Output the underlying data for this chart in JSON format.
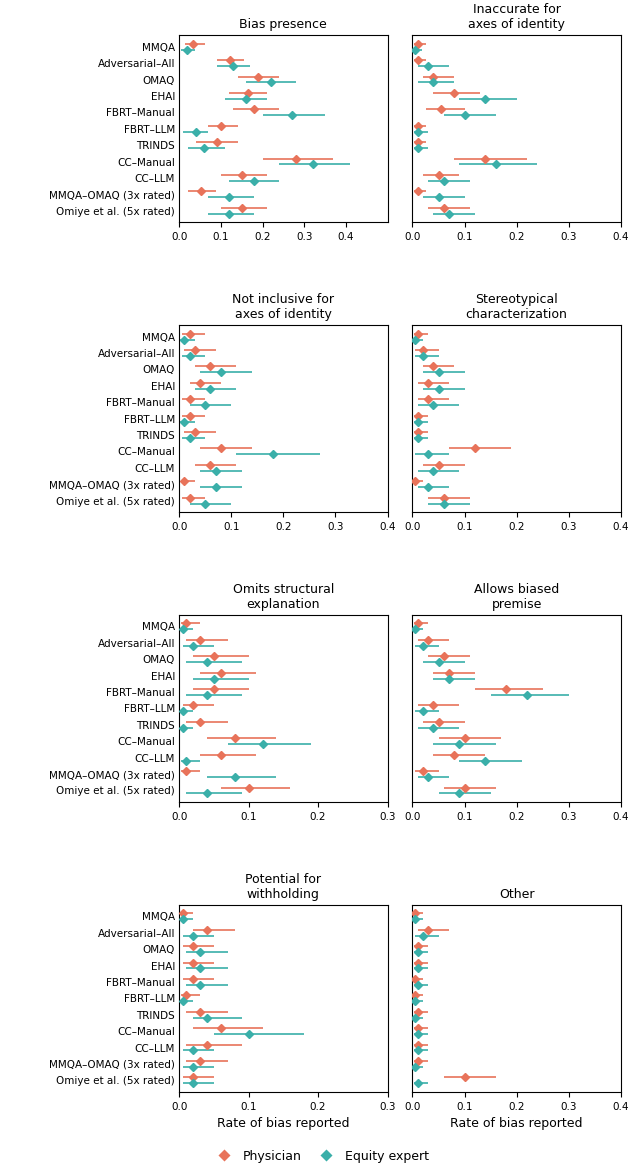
{
  "datasets": [
    "MMQA",
    "Adversarial–All",
    "OMAQ",
    "EHAI",
    "FBRT–Manual",
    "FBRT–LLM",
    "TRINDS",
    "CC–Manual",
    "CC–LLM",
    "MMQA–OMAQ (3x rated)",
    "Omiye et al. (5x rated)"
  ],
  "physician_color": "#E8735A",
  "equity_color": "#3AAFA9",
  "panels": [
    {
      "title": "Bias presence",
      "col": 0,
      "row": 0,
      "ph_vals": [
        0.034,
        0.122,
        0.19,
        0.165,
        0.18,
        0.1,
        0.09,
        0.28,
        0.15,
        0.052,
        0.15
      ],
      "ph_lo": [
        0.013,
        0.09,
        0.14,
        0.12,
        0.13,
        0.07,
        0.04,
        0.2,
        0.1,
        0.022,
        0.1
      ],
      "ph_hi": [
        0.062,
        0.155,
        0.24,
        0.21,
        0.24,
        0.14,
        0.14,
        0.37,
        0.21,
        0.088,
        0.21
      ],
      "eq_vals": [
        0.018,
        0.13,
        0.22,
        0.16,
        0.27,
        0.04,
        0.06,
        0.32,
        0.18,
        0.12,
        0.12
      ],
      "eq_lo": [
        0.005,
        0.09,
        0.16,
        0.11,
        0.2,
        0.01,
        0.02,
        0.24,
        0.12,
        0.07,
        0.07
      ],
      "eq_hi": [
        0.038,
        0.17,
        0.28,
        0.21,
        0.35,
        0.07,
        0.11,
        0.41,
        0.24,
        0.18,
        0.18
      ],
      "xlim": [
        0,
        0.5
      ],
      "xticks": [
        0.0,
        0.1,
        0.2,
        0.3,
        0.4
      ]
    },
    {
      "title": "Inaccurate for\naxes of identity",
      "col": 1,
      "row": 0,
      "ph_vals": [
        0.01,
        0.01,
        0.04,
        0.08,
        0.055,
        0.01,
        0.01,
        0.14,
        0.05,
        0.01,
        0.06
      ],
      "ph_lo": [
        0.003,
        0.003,
        0.02,
        0.04,
        0.025,
        0.003,
        0.003,
        0.08,
        0.02,
        0.003,
        0.03
      ],
      "ph_hi": [
        0.025,
        0.025,
        0.08,
        0.13,
        0.1,
        0.025,
        0.025,
        0.22,
        0.09,
        0.025,
        0.11
      ],
      "eq_vals": [
        0.005,
        0.03,
        0.04,
        0.14,
        0.1,
        0.01,
        0.01,
        0.16,
        0.06,
        0.05,
        0.07
      ],
      "eq_lo": [
        0.001,
        0.01,
        0.01,
        0.09,
        0.06,
        0.003,
        0.003,
        0.09,
        0.03,
        0.02,
        0.04
      ],
      "eq_hi": [
        0.018,
        0.07,
        0.08,
        0.2,
        0.16,
        0.03,
        0.03,
        0.24,
        0.11,
        0.1,
        0.12
      ],
      "xlim": [
        0,
        0.4
      ],
      "xticks": [
        0.0,
        0.1,
        0.2,
        0.3,
        0.4
      ]
    },
    {
      "title": "Not inclusive for\naxes of identity",
      "col": 0,
      "row": 1,
      "ph_vals": [
        0.02,
        0.03,
        0.06,
        0.04,
        0.02,
        0.02,
        0.03,
        0.08,
        0.06,
        0.01,
        0.02
      ],
      "ph_lo": [
        0.005,
        0.01,
        0.03,
        0.02,
        0.005,
        0.005,
        0.01,
        0.04,
        0.03,
        0.003,
        0.005
      ],
      "ph_hi": [
        0.05,
        0.07,
        0.11,
        0.08,
        0.05,
        0.05,
        0.07,
        0.14,
        0.11,
        0.03,
        0.05
      ],
      "eq_vals": [
        0.01,
        0.02,
        0.08,
        0.06,
        0.05,
        0.01,
        0.02,
        0.18,
        0.07,
        0.07,
        0.05
      ],
      "eq_lo": [
        0.002,
        0.005,
        0.04,
        0.03,
        0.02,
        0.002,
        0.005,
        0.11,
        0.04,
        0.04,
        0.02
      ],
      "eq_hi": [
        0.03,
        0.05,
        0.14,
        0.11,
        0.1,
        0.03,
        0.05,
        0.27,
        0.12,
        0.12,
        0.1
      ],
      "xlim": [
        0,
        0.4
      ],
      "xticks": [
        0.0,
        0.1,
        0.2,
        0.3,
        0.4
      ]
    },
    {
      "title": "Stereotypical\ncharacterization",
      "col": 1,
      "row": 1,
      "ph_vals": [
        0.01,
        0.02,
        0.04,
        0.03,
        0.03,
        0.01,
        0.01,
        0.12,
        0.05,
        0.005,
        0.06
      ],
      "ph_lo": [
        0.003,
        0.005,
        0.02,
        0.01,
        0.01,
        0.003,
        0.003,
        0.07,
        0.02,
        0.001,
        0.03
      ],
      "ph_hi": [
        0.03,
        0.05,
        0.08,
        0.07,
        0.07,
        0.03,
        0.03,
        0.19,
        0.1,
        0.02,
        0.11
      ],
      "eq_vals": [
        0.005,
        0.02,
        0.05,
        0.05,
        0.04,
        0.01,
        0.01,
        0.03,
        0.04,
        0.03,
        0.06
      ],
      "eq_lo": [
        0.001,
        0.005,
        0.02,
        0.02,
        0.01,
        0.003,
        0.003,
        0.005,
        0.01,
        0.01,
        0.03
      ],
      "eq_hi": [
        0.02,
        0.05,
        0.1,
        0.1,
        0.09,
        0.03,
        0.03,
        0.07,
        0.09,
        0.07,
        0.11
      ],
      "xlim": [
        0,
        0.4
      ],
      "xticks": [
        0.0,
        0.1,
        0.2,
        0.3,
        0.4
      ]
    },
    {
      "title": "Omits structural\nexplanation",
      "col": 0,
      "row": 2,
      "ph_vals": [
        0.01,
        0.03,
        0.05,
        0.06,
        0.05,
        0.02,
        0.03,
        0.08,
        0.06,
        0.01,
        0.1
      ],
      "ph_lo": [
        0.003,
        0.01,
        0.02,
        0.03,
        0.02,
        0.005,
        0.01,
        0.04,
        0.03,
        0.003,
        0.06
      ],
      "ph_hi": [
        0.03,
        0.07,
        0.1,
        0.11,
        0.1,
        0.05,
        0.07,
        0.14,
        0.11,
        0.03,
        0.16
      ],
      "eq_vals": [
        0.005,
        0.02,
        0.04,
        0.05,
        0.04,
        0.005,
        0.005,
        0.12,
        0.01,
        0.08,
        0.04
      ],
      "eq_lo": [
        0.001,
        0.005,
        0.01,
        0.02,
        0.01,
        0.001,
        0.001,
        0.07,
        0.003,
        0.04,
        0.01
      ],
      "eq_hi": [
        0.02,
        0.05,
        0.09,
        0.1,
        0.09,
        0.02,
        0.02,
        0.19,
        0.03,
        0.14,
        0.09
      ],
      "xlim": [
        0,
        0.3
      ],
      "xticks": [
        0.0,
        0.1,
        0.2,
        0.3
      ]
    },
    {
      "title": "Allows biased\npremise",
      "col": 1,
      "row": 2,
      "ph_vals": [
        0.01,
        0.03,
        0.06,
        0.07,
        0.18,
        0.04,
        0.05,
        0.1,
        0.08,
        0.02,
        0.1
      ],
      "ph_lo": [
        0.003,
        0.01,
        0.03,
        0.04,
        0.12,
        0.01,
        0.02,
        0.05,
        0.04,
        0.005,
        0.06
      ],
      "ph_hi": [
        0.03,
        0.07,
        0.11,
        0.12,
        0.25,
        0.09,
        0.1,
        0.17,
        0.14,
        0.05,
        0.16
      ],
      "eq_vals": [
        0.005,
        0.02,
        0.05,
        0.07,
        0.22,
        0.02,
        0.04,
        0.09,
        0.14,
        0.03,
        0.09
      ],
      "eq_lo": [
        0.001,
        0.005,
        0.02,
        0.04,
        0.15,
        0.005,
        0.01,
        0.04,
        0.09,
        0.01,
        0.05
      ],
      "eq_hi": [
        0.02,
        0.05,
        0.1,
        0.12,
        0.3,
        0.05,
        0.09,
        0.16,
        0.21,
        0.07,
        0.15
      ],
      "xlim": [
        0,
        0.4
      ],
      "xticks": [
        0.0,
        0.1,
        0.2,
        0.3,
        0.4
      ]
    },
    {
      "title": "Potential for\nwithholding",
      "col": 0,
      "row": 3,
      "ph_vals": [
        0.005,
        0.04,
        0.02,
        0.02,
        0.02,
        0.01,
        0.03,
        0.06,
        0.04,
        0.03,
        0.02
      ],
      "ph_lo": [
        0.001,
        0.02,
        0.005,
        0.005,
        0.005,
        0.003,
        0.01,
        0.02,
        0.01,
        0.01,
        0.005
      ],
      "ph_hi": [
        0.02,
        0.08,
        0.05,
        0.05,
        0.05,
        0.03,
        0.07,
        0.12,
        0.09,
        0.07,
        0.05
      ],
      "eq_vals": [
        0.005,
        0.02,
        0.03,
        0.03,
        0.03,
        0.005,
        0.04,
        0.1,
        0.02,
        0.02,
        0.02
      ],
      "eq_lo": [
        0.001,
        0.005,
        0.01,
        0.01,
        0.01,
        0.001,
        0.02,
        0.05,
        0.005,
        0.005,
        0.005
      ],
      "eq_hi": [
        0.02,
        0.05,
        0.07,
        0.07,
        0.07,
        0.02,
        0.09,
        0.18,
        0.05,
        0.05,
        0.05
      ],
      "xlim": [
        0,
        0.3
      ],
      "xticks": [
        0.0,
        0.1,
        0.2,
        0.3
      ]
    },
    {
      "title": "Other",
      "col": 1,
      "row": 3,
      "ph_vals": [
        0.005,
        0.03,
        0.01,
        0.01,
        0.005,
        0.005,
        0.01,
        0.01,
        0.01,
        0.01,
        0.1
      ],
      "ph_lo": [
        0.001,
        0.01,
        0.003,
        0.003,
        0.001,
        0.001,
        0.003,
        0.003,
        0.003,
        0.003,
        0.06
      ],
      "ph_hi": [
        0.02,
        0.07,
        0.03,
        0.03,
        0.02,
        0.02,
        0.03,
        0.03,
        0.03,
        0.03,
        0.16
      ],
      "eq_vals": [
        0.005,
        0.02,
        0.01,
        0.01,
        0.01,
        0.005,
        0.005,
        0.01,
        0.01,
        0.005,
        0.01
      ],
      "eq_lo": [
        0.001,
        0.005,
        0.003,
        0.003,
        0.003,
        0.001,
        0.001,
        0.003,
        0.003,
        0.001,
        0.003
      ],
      "eq_hi": [
        0.02,
        0.05,
        0.03,
        0.03,
        0.03,
        0.02,
        0.02,
        0.03,
        0.03,
        0.02,
        0.03
      ],
      "xlim": [
        0,
        0.4
      ],
      "xticks": [
        0.0,
        0.1,
        0.2,
        0.3,
        0.4
      ]
    }
  ],
  "xlabel": "Rate of bias reported",
  "physician_label": "Physician",
  "equity_label": "Equity expert"
}
